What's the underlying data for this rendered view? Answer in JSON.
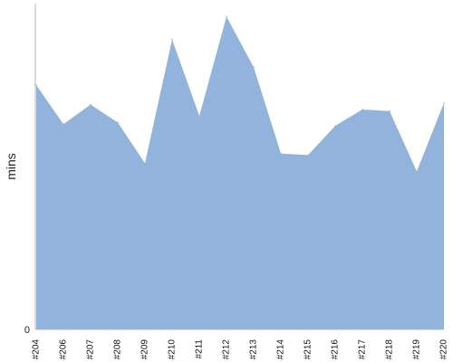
{
  "chart_data": {
    "type": "area",
    "categories": [
      "#204",
      "#206",
      "#207",
      "#208",
      "#209",
      "#210",
      "#211",
      "#212",
      "#213",
      "#214",
      "#215",
      "#216",
      "#217",
      "#218",
      "#219",
      "#220"
    ],
    "values": [
      75,
      63,
      69,
      63.5,
      51,
      89,
      65.5,
      96,
      80.5,
      54,
      53.5,
      62.5,
      67.5,
      67,
      48.5,
      69.5
    ],
    "title": "",
    "xlabel": "",
    "ylabel": "mins",
    "ylim": [
      0,
      100
    ],
    "y_tick_labels": [
      "0"
    ],
    "grid": false,
    "legend": "none",
    "fill_color": "#92b3db",
    "axis_color": "#b5b5b5"
  }
}
